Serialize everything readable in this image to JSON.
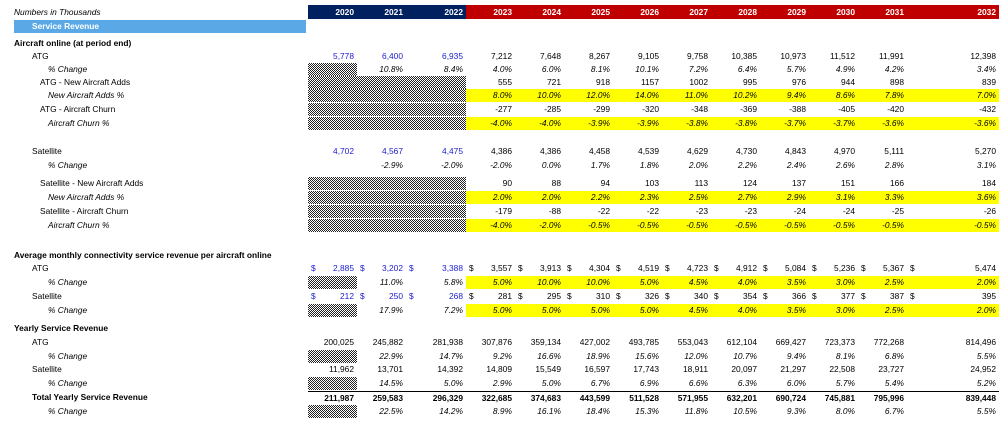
{
  "header": {
    "title": "Numbers in Thousands",
    "years": [
      "2020",
      "2021",
      "2022",
      "2023",
      "2024",
      "2025",
      "2026",
      "2027",
      "2028",
      "2029",
      "2030",
      "2031",
      "2032"
    ],
    "hist_color": "#002060",
    "proj_color": "#c00000",
    "band_label": "Service Revenue",
    "band_color": "#5aa9e6"
  },
  "sections": {
    "aircraft_online": "Aircraft online (at period end)",
    "avg_monthly": "Average monthly connectivity service revenue per aircraft online",
    "yearly": "Yearly Service Revenue"
  },
  "rows": {
    "atg": {
      "label": "ATG",
      "values": [
        "5,778",
        "6,400",
        "6,935",
        "7,212",
        "7,648",
        "8,267",
        "9,105",
        "9,758",
        "10,385",
        "10,973",
        "11,512",
        "11,991",
        "12,398"
      ]
    },
    "atg_chg": {
      "label": "% Change",
      "values": [
        "",
        "10.8%",
        "8.4%",
        "4.0%",
        "6.0%",
        "8.1%",
        "10.1%",
        "7.2%",
        "6.4%",
        "5.7%",
        "4.9%",
        "4.2%",
        "3.4%"
      ]
    },
    "atg_adds": {
      "label": "ATG - New Aircraft Adds",
      "values": [
        "",
        "",
        "",
        "555",
        "721",
        "918",
        "1157",
        "1002",
        "995",
        "976",
        "944",
        "898",
        "839"
      ]
    },
    "atg_adds_pct": {
      "label": "New Aircraft Adds %",
      "values": [
        "",
        "",
        "",
        "8.0%",
        "10.0%",
        "12.0%",
        "14.0%",
        "11.0%",
        "10.2%",
        "9.4%",
        "8.6%",
        "7.8%",
        "7.0%"
      ]
    },
    "atg_churn": {
      "label": "ATG - Aircraft Churn",
      "values": [
        "",
        "",
        "",
        "-277",
        "-285",
        "-299",
        "-320",
        "-348",
        "-369",
        "-388",
        "-405",
        "-420",
        "-432"
      ]
    },
    "atg_churn_pct": {
      "label": "Aircraft Churn %",
      "values": [
        "",
        "",
        "",
        "-4.0%",
        "-4.0%",
        "-3.9%",
        "-3.9%",
        "-3.8%",
        "-3.8%",
        "-3.7%",
        "-3.7%",
        "-3.6%",
        "-3.6%"
      ]
    },
    "sat": {
      "label": "Satellite",
      "values": [
        "4,702",
        "4,567",
        "4,475",
        "4,386",
        "4,386",
        "4,458",
        "4,539",
        "4,629",
        "4,730",
        "4,843",
        "4,970",
        "5,111",
        "5,270"
      ]
    },
    "sat_chg": {
      "label": "% Change",
      "values": [
        "",
        "-2.9%",
        "-2.0%",
        "-2.0%",
        "0.0%",
        "1.7%",
        "1.8%",
        "2.0%",
        "2.2%",
        "2.4%",
        "2.6%",
        "2.8%",
        "3.1%"
      ]
    },
    "sat_adds": {
      "label": "Satellite - New Aircraft Adds",
      "values": [
        "",
        "",
        "",
        "90",
        "88",
        "94",
        "103",
        "113",
        "124",
        "137",
        "151",
        "166",
        "184"
      ]
    },
    "sat_adds_pct": {
      "label": "New Aircraft Adds %",
      "values": [
        "",
        "",
        "",
        "2.0%",
        "2.0%",
        "2.2%",
        "2.3%",
        "2.5%",
        "2.7%",
        "2.9%",
        "3.1%",
        "3.3%",
        "3.6%"
      ]
    },
    "sat_churn": {
      "label": "Satellite - Aircraft Churn",
      "values": [
        "",
        "",
        "",
        "-179",
        "-88",
        "-22",
        "-22",
        "-23",
        "-23",
        "-24",
        "-24",
        "-25",
        "-26"
      ]
    },
    "sat_churn_pct": {
      "label": "Aircraft Churn %",
      "values": [
        "",
        "",
        "",
        "-4.0%",
        "-2.0%",
        "-0.5%",
        "-0.5%",
        "-0.5%",
        "-0.5%",
        "-0.5%",
        "-0.5%",
        "-0.5%",
        "-0.5%"
      ]
    },
    "arpa_atg": {
      "label": "ATG",
      "values": [
        "2,885",
        "3,202",
        "3,388",
        "3,557",
        "3,913",
        "4,304",
        "4,519",
        "4,723",
        "4,912",
        "5,084",
        "5,236",
        "5,367",
        "5,474"
      ]
    },
    "arpa_atg_chg": {
      "label": "% Change",
      "values": [
        "",
        "11.0%",
        "5.8%",
        "5.0%",
        "10.0%",
        "10.0%",
        "5.0%",
        "4.5%",
        "4.0%",
        "3.5%",
        "3.0%",
        "2.5%",
        "2.0%"
      ]
    },
    "arpa_sat": {
      "label": "Satellite",
      "values": [
        "212",
        "250",
        "268",
        "281",
        "295",
        "310",
        "326",
        "340",
        "354",
        "366",
        "377",
        "387",
        "395"
      ]
    },
    "arpa_sat_chg": {
      "label": "% Change",
      "values": [
        "",
        "17.9%",
        "7.2%",
        "5.0%",
        "5.0%",
        "5.0%",
        "5.0%",
        "4.5%",
        "4.0%",
        "3.5%",
        "3.0%",
        "2.5%",
        "2.0%"
      ]
    },
    "yr_atg": {
      "label": "ATG",
      "values": [
        "200,025",
        "245,882",
        "281,938",
        "307,876",
        "359,134",
        "427,002",
        "493,785",
        "553,043",
        "612,104",
        "669,427",
        "723,373",
        "772,268",
        "814,496"
      ]
    },
    "yr_atg_chg": {
      "label": "% Change",
      "values": [
        "",
        "22.9%",
        "14.7%",
        "9.2%",
        "16.6%",
        "18.9%",
        "15.6%",
        "12.0%",
        "10.7%",
        "9.4%",
        "8.1%",
        "6.8%",
        "5.5%"
      ]
    },
    "yr_sat": {
      "label": "Satellite",
      "values": [
        "11,962",
        "13,701",
        "14,392",
        "14,809",
        "15,549",
        "16,597",
        "17,743",
        "18,911",
        "20,097",
        "21,297",
        "22,508",
        "23,727",
        "24,952"
      ]
    },
    "yr_sat_chg": {
      "label": "% Change",
      "values": [
        "",
        "14.5%",
        "5.0%",
        "2.9%",
        "5.0%",
        "6.7%",
        "6.9%",
        "6.6%",
        "6.3%",
        "6.0%",
        "5.7%",
        "5.4%",
        "5.2%"
      ]
    },
    "yr_total": {
      "label": "Total Yearly Service Revenue",
      "values": [
        "211,987",
        "259,583",
        "296,329",
        "322,685",
        "374,683",
        "443,599",
        "511,528",
        "571,955",
        "632,201",
        "690,724",
        "745,881",
        "795,996",
        "839,448"
      ]
    },
    "yr_total_chg": {
      "label": "% Change",
      "values": [
        "",
        "22.5%",
        "14.2%",
        "8.9%",
        "16.1%",
        "18.4%",
        "15.3%",
        "11.8%",
        "10.5%",
        "9.3%",
        "8.0%",
        "6.7%",
        "5.5%"
      ]
    }
  },
  "currency_symbol": "$"
}
